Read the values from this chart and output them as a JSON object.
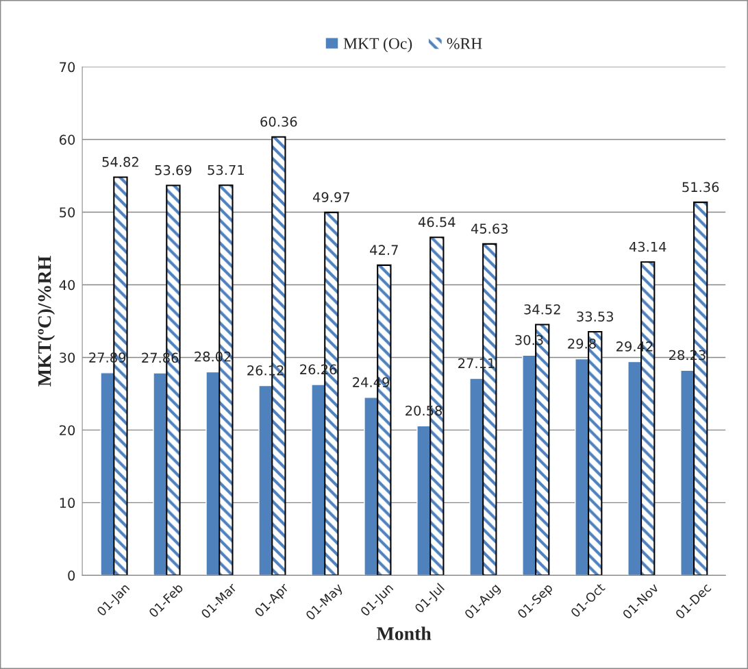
{
  "chart_data": {
    "type": "bar",
    "xlabel": "Month",
    "ylabel": "MKT(ºC)/%RH",
    "categories": [
      "01-Jan",
      "01-Feb",
      "01-Mar",
      "01-Apr",
      "01-May",
      "01-Jun",
      "01-Jul",
      "01-Aug",
      "01-Sep",
      "01-Oct",
      "01-Nov",
      "01-Dec"
    ],
    "series": [
      {
        "name": "MKT (Oc)",
        "color": "#4f81bd",
        "values": [
          27.89,
          27.86,
          28.02,
          26.12,
          26.26,
          24.49,
          20.58,
          27.11,
          30.3,
          29.8,
          29.42,
          28.23
        ]
      },
      {
        "name": "%RH",
        "color": "#4f81bd",
        "values": [
          54.82,
          53.69,
          53.71,
          60.36,
          49.97,
          42.7,
          46.54,
          45.63,
          34.52,
          33.53,
          43.14,
          51.36
        ]
      }
    ],
    "ylim": [
      0,
      70
    ],
    "yticks": [
      0,
      10,
      20,
      30,
      40,
      50,
      60,
      70
    ],
    "grid": "y",
    "legend": "top",
    "data_labels": true
  }
}
